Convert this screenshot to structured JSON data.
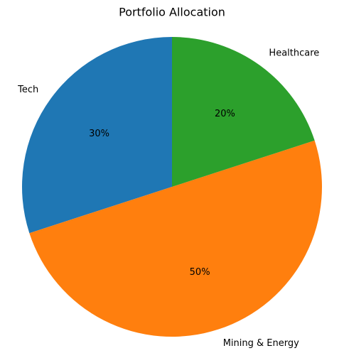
{
  "chart_data": {
    "type": "pie",
    "title": "Portfolio Allocation",
    "categories": [
      "Tech",
      "Mining & Energy",
      "Healthcare"
    ],
    "values": [
      30,
      50,
      20
    ],
    "value_labels": [
      "30%",
      "50%",
      "20%"
    ],
    "colors": [
      "#1f77b4",
      "#ff7f0e",
      "#2ca02c"
    ],
    "start_angle": 90
  }
}
